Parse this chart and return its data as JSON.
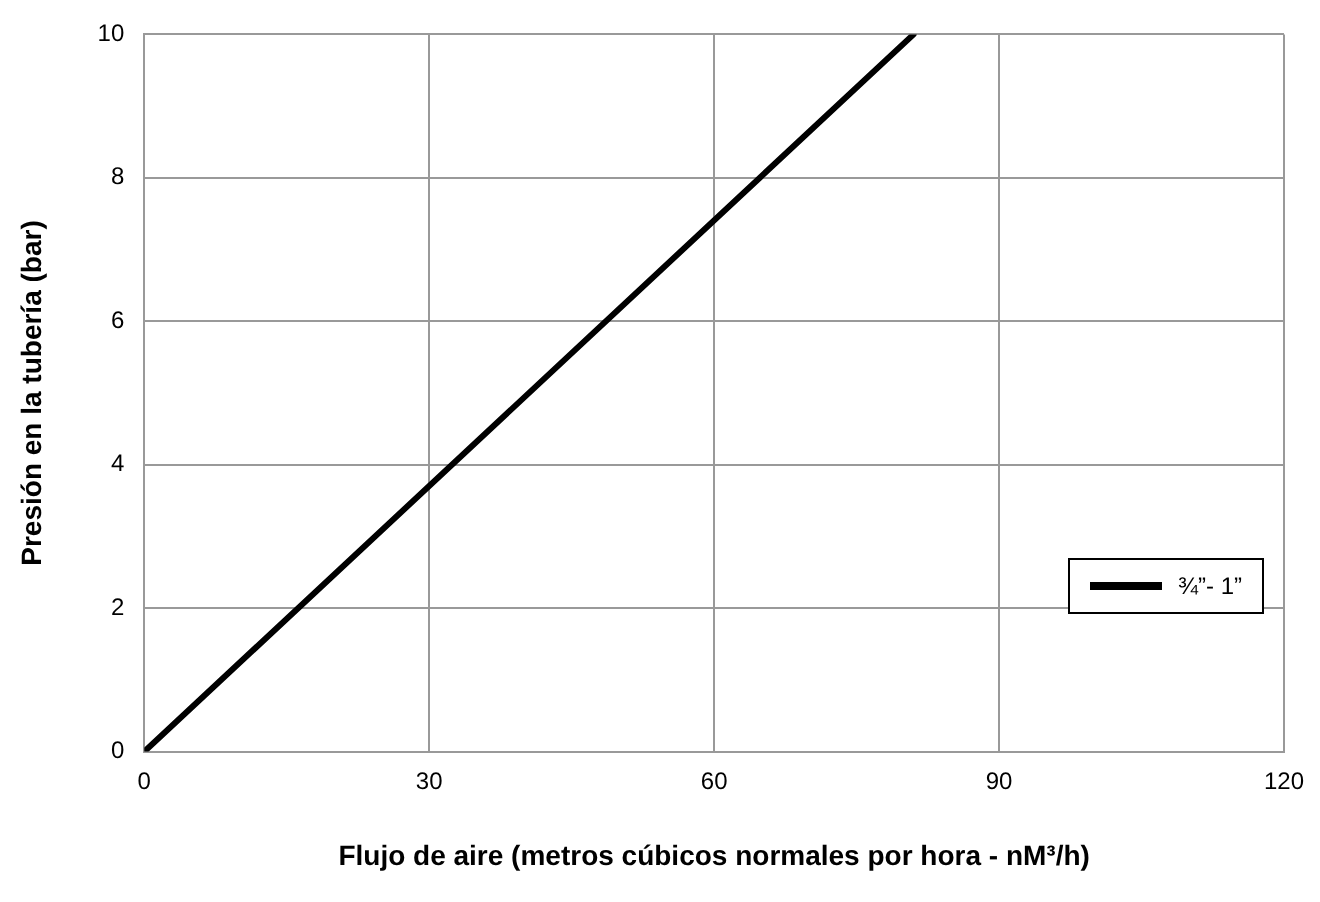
{
  "chart_data": {
    "type": "line",
    "xlabel": "Flujo de aire (metros cúbicos normales por hora - nM³/h)",
    "ylabel": "Presión en la tubería (bar)",
    "series": [
      {
        "name": "¾”- 1”",
        "color": "#000000",
        "x": [
          0,
          81
        ],
        "values": [
          0,
          10
        ]
      }
    ],
    "xlim": [
      0,
      120
    ],
    "xticks": [
      0,
      30,
      60,
      90,
      120
    ],
    "ylim": [
      0,
      10
    ],
    "yticks": [
      0,
      2,
      4,
      6,
      8,
      10
    ],
    "grid": true,
    "legend": "right",
    "marker": "none",
    "line_style": "solid"
  }
}
